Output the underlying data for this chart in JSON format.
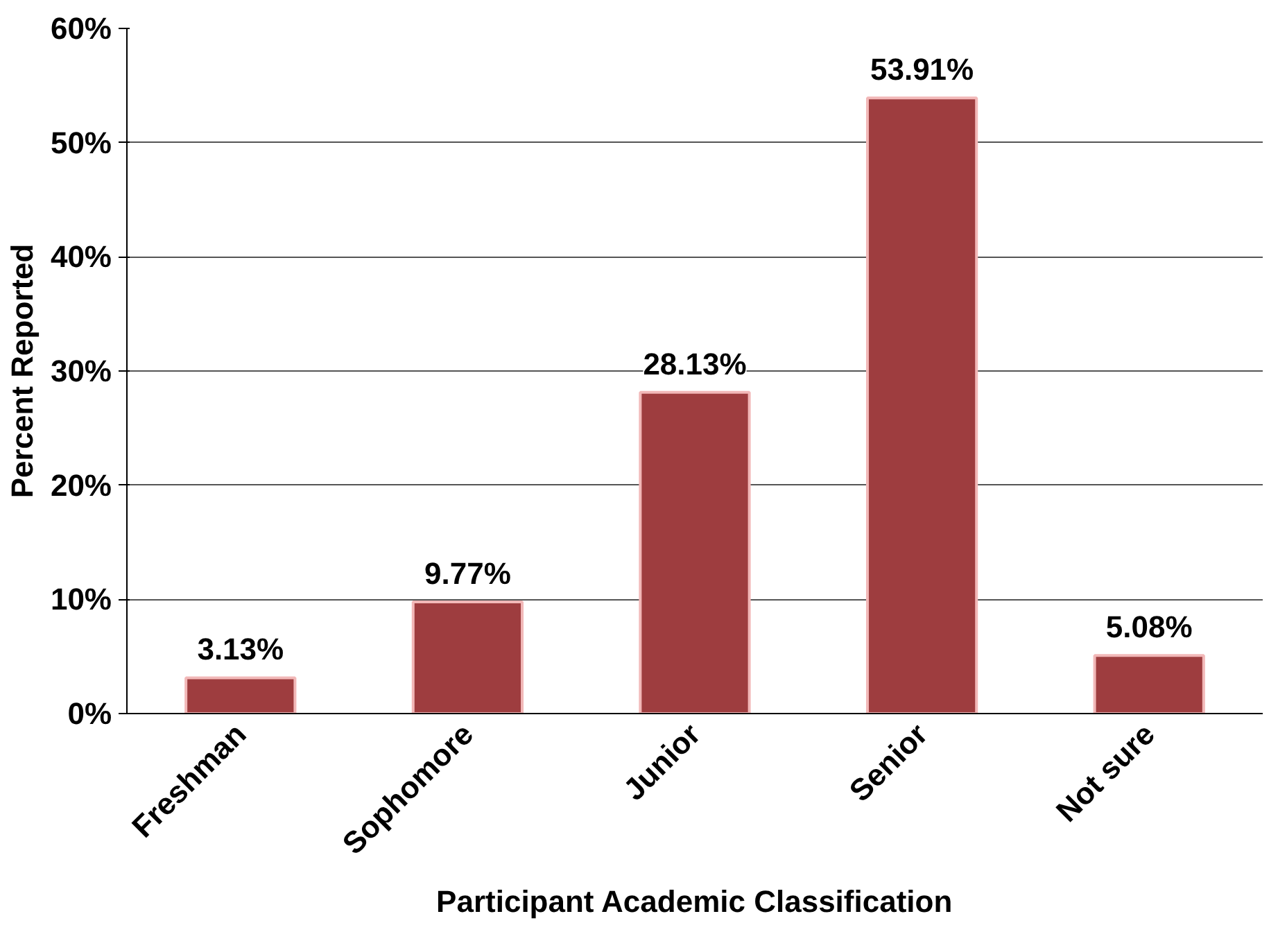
{
  "chart_data": {
    "type": "bar",
    "xlabel": "Participant Academic Classification",
    "ylabel": "Percent Reported",
    "categories": [
      "Freshman",
      "Sophomore",
      "Junior",
      "Senior",
      "Not sure"
    ],
    "values": [
      3.13,
      9.77,
      28.13,
      53.91,
      5.08
    ],
    "value_labels": [
      "3.13%",
      "9.77%",
      "28.13%",
      "53.91%",
      "5.08%"
    ],
    "color": "#9e3d3f",
    "ylim": [
      0,
      60
    ],
    "yticks": [
      {
        "value": 0,
        "label": "0%"
      },
      {
        "value": 10,
        "label": "10%"
      },
      {
        "value": 20,
        "label": "20%"
      },
      {
        "value": 30,
        "label": "30%"
      },
      {
        "value": 40,
        "label": "40%"
      },
      {
        "value": 50,
        "label": "50%"
      },
      {
        "value": 60,
        "label": "60%"
      }
    ],
    "grid": "y"
  }
}
